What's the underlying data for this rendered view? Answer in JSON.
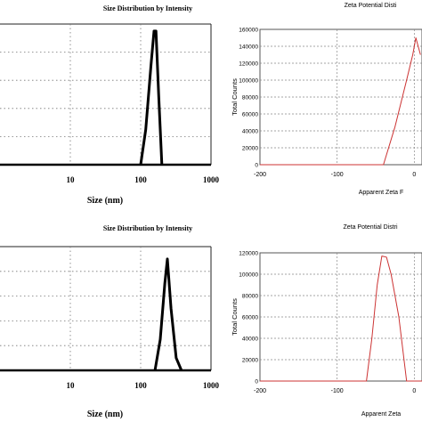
{
  "chart_data": [
    {
      "type": "line",
      "title": "Size Distribution by Intensity",
      "xlabel": "Size (nm)",
      "ylabel": "",
      "x_scale": "log",
      "xlim": [
        1,
        1000
      ],
      "x_ticks": [
        "10",
        "100",
        "1000"
      ],
      "ylim": [
        0,
        20
      ],
      "grid": true,
      "series": [
        {
          "x": [
            100,
            118,
            140,
            155,
            165,
            180,
            200
          ],
          "y": [
            0,
            5,
            14,
            19,
            19,
            10,
            0
          ]
        }
      ]
    },
    {
      "type": "line",
      "title": "Zeta Potential Disti",
      "xlabel": "Apparent Zeta F",
      "ylabel": "Total Counts",
      "xlim": [
        -200,
        10
      ],
      "x_ticks": [
        "-200",
        "-100",
        "0"
      ],
      "ylim": [
        0,
        160000
      ],
      "y_ticks": [
        "0",
        "20000",
        "40000",
        "60000",
        "80000",
        "100000",
        "120000",
        "140000",
        "160000"
      ],
      "grid": true,
      "color": "#cc3333",
      "series": [
        {
          "x": [
            -200,
            -40,
            -25,
            -10,
            -2,
            2,
            8
          ],
          "y": [
            0,
            0,
            45000,
            100000,
            130000,
            150000,
            130000
          ]
        }
      ]
    },
    {
      "type": "line",
      "title": "Size Distribution by Intensity",
      "xlabel": "Size (nm)",
      "ylabel": "",
      "x_scale": "log",
      "xlim": [
        1,
        1000
      ],
      "x_ticks": [
        "10",
        "100",
        "1000"
      ],
      "ylim": [
        0,
        20
      ],
      "grid": true,
      "series": [
        {
          "x": [
            160,
            190,
            220,
            240,
            270,
            320,
            380
          ],
          "y": [
            0,
            5,
            14,
            18,
            10,
            2,
            0
          ]
        }
      ]
    },
    {
      "type": "line",
      "title": "Zeta Potential Distri",
      "xlabel": "Apparent Zeta",
      "ylabel": "Total Counts",
      "xlim": [
        -200,
        10
      ],
      "x_ticks": [
        "-200",
        "-100",
        "0"
      ],
      "ylim": [
        0,
        120000
      ],
      "y_ticks": [
        "0",
        "20000",
        "40000",
        "60000",
        "80000",
        "100000",
        "120000"
      ],
      "grid": true,
      "color": "#cc3333",
      "series": [
        {
          "x": [
            -200,
            -62,
            -55,
            -48,
            -42,
            -36,
            -30,
            -20,
            -10,
            10
          ],
          "y": [
            0,
            0,
            40000,
            90000,
            117000,
            116000,
            100000,
            60000,
            0,
            0
          ]
        }
      ]
    }
  ]
}
